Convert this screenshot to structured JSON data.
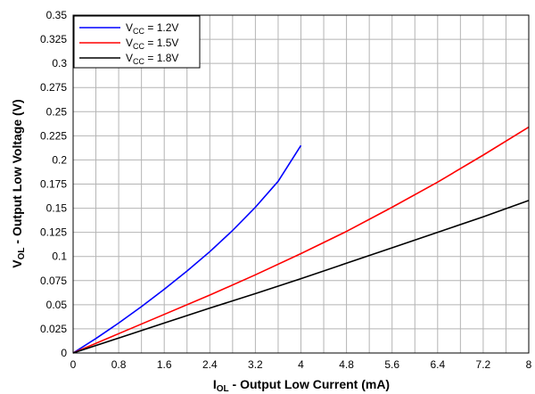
{
  "chart_data": {
    "type": "line",
    "title": "",
    "xlabel": {
      "main": "I",
      "sub": "OL",
      "rest": " - Output Low Current (mA)"
    },
    "ylabel": {
      "main": "V",
      "sub": "OL",
      "rest": " - Output Low Voltage (V)"
    },
    "xlim": [
      0,
      8
    ],
    "ylim": [
      0,
      0.35
    ],
    "x_ticks": [
      "0",
      "0.8",
      "1.6",
      "2.4",
      "3.2",
      "4",
      "4.8",
      "5.6",
      "6.4",
      "7.2",
      "8"
    ],
    "y_ticks": [
      "0",
      "0.025",
      "0.05",
      "0.075",
      "0.1",
      "0.125",
      "0.15",
      "0.175",
      "0.2",
      "0.225",
      "0.25",
      "0.275",
      "0.3",
      "0.325",
      "0.35"
    ],
    "grid": true,
    "grid_x_divisions": 20,
    "legend_placement": "top-left",
    "series": [
      {
        "name": {
          "main": "V",
          "sub": "CC",
          "rest": " = 1.2V"
        },
        "color": "#0000ff",
        "x": [
          0,
          0.4,
          0.8,
          1.2,
          1.6,
          2.0,
          2.4,
          2.8,
          3.2,
          3.6,
          4.0
        ],
        "y": [
          0,
          0.015,
          0.031,
          0.048,
          0.066,
          0.085,
          0.105,
          0.127,
          0.151,
          0.178,
          0.215
        ]
      },
      {
        "name": {
          "main": "V",
          "sub": "CC",
          "rest": " = 1.5V"
        },
        "color": "#ff0000",
        "x": [
          0,
          0.8,
          1.6,
          2.4,
          3.2,
          4.0,
          4.8,
          5.6,
          6.4,
          7.2,
          8.0
        ],
        "y": [
          0,
          0.02,
          0.04,
          0.06,
          0.081,
          0.103,
          0.126,
          0.151,
          0.177,
          0.205,
          0.234
        ]
      },
      {
        "name": {
          "main": "V",
          "sub": "CC",
          "rest": " = 1.8V"
        },
        "color": "#000000",
        "x": [
          0,
          0.8,
          1.6,
          2.4,
          3.2,
          4.0,
          4.8,
          5.6,
          6.4,
          7.2,
          8.0
        ],
        "y": [
          0,
          0.0155,
          0.031,
          0.0465,
          0.0615,
          0.077,
          0.093,
          0.109,
          0.125,
          0.141,
          0.158
        ]
      }
    ]
  }
}
